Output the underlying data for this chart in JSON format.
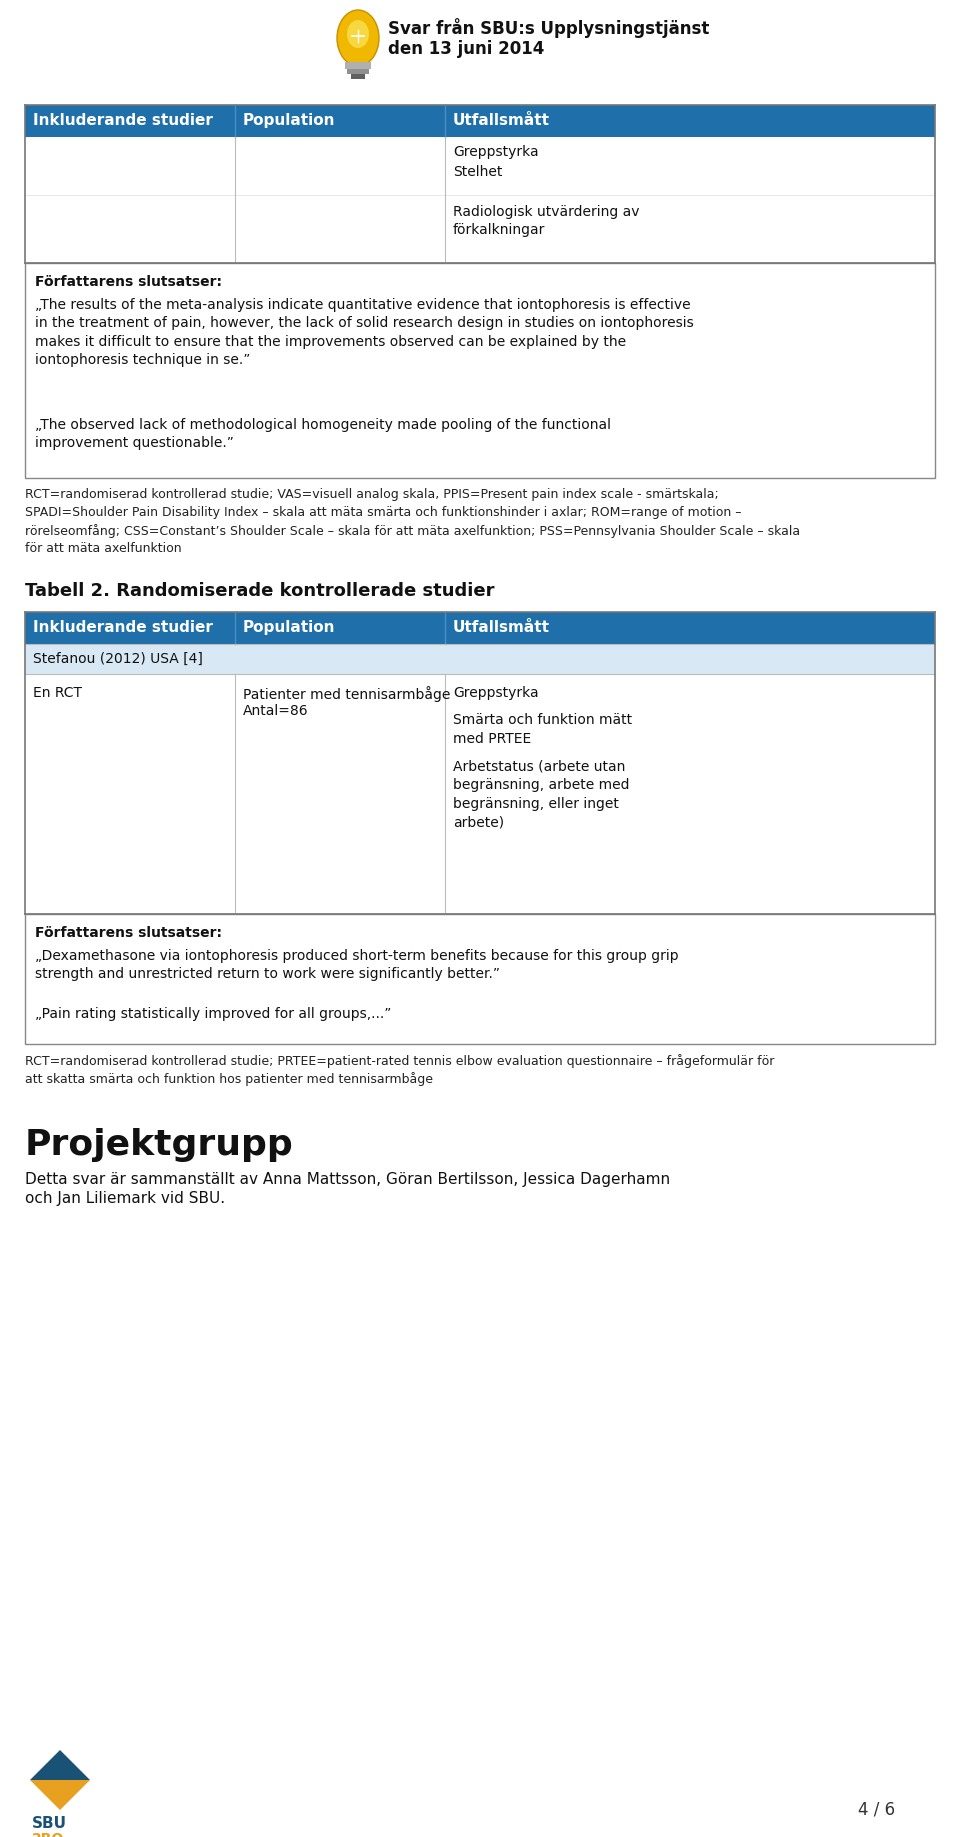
{
  "page_bg": "#ffffff",
  "header_logo_text1": "Svar från SBU:s Upplysningstjänst",
  "header_logo_text2": "den 13 juni 2014",
  "col_headers": [
    "Inkluderande studier",
    "Population",
    "Utfallsmått"
  ],
  "table2_title": "Tabell 2. Randomiserade kontrollerade studier",
  "author_conclusion_label1": "Författarens slutsatser:",
  "author_quote1a": "„The results of the meta-analysis indicate quantitative evidence that iontophoresis is effective\nin the treatment of pain, however, the lack of solid research design in studies on iontophoresis\nmakes it difficult to ensure that the improvements observed can be explained by the\niontophoresis technique in se.”",
  "author_quote1b": "„The observed lack of methodological homogeneity made pooling of the functional\nimprovement questionable.”",
  "footnote1_line1": "RCT=randomiserad kontrollerad studie; VAS=visuell analog skala, PPIS=Present pain index scale - smärtskala;",
  "footnote1_line2": "SPADI=Shoulder Pain Disability Index – skala att mäta smärta och funktionshinder i axlar; ROM=range of motion –",
  "footnote1_line3": "rörelseomfång; CSS=Constant’s Shoulder Scale – skala för att mäta axelfunktion; PSS=Pennsylvania Shoulder Scale – skala",
  "footnote1_line4": "för att mäta axelfunktion",
  "table2_span_row": "Stefanou (2012) USA [4]",
  "table2_col1": "En RCT",
  "table2_col2_l1": "Patienter med tennisarmbåge",
  "table2_col2_l2": "Antal=86",
  "table2_col3_items": [
    "Greppstyrka",
    "Smärta och funktion mätt\nmed PRTEE",
    "Arbetstatus (arbete utan\nbegränsning, arbete med\nbegränsning, eller inget\narbete)"
  ],
  "author_conclusion_label2": "Författarens slutsatser:",
  "author_quote2a": "„Dexamethasone via iontophoresis produced short-term benefits because for this group grip\nstrength and unrestricted return to work were significantly better.”",
  "author_quote2b": "„Pain rating statistically improved for all groups,...”",
  "footnote2_line1": "RCT=randomiserad kontrollerad studie; PRTEE=patient-rated tennis elbow evaluation questionnaire – frågeformulär för",
  "footnote2_line2": "att skatta smärta och funktion hos patienter med tennisarmbåge",
  "projektgrupp_title": "Projektgrupp",
  "projektgrupp_line1": "Detta svar är sammanställt av Anna Mattsson, Göran Bertilsson, Jessica Dagerhamn",
  "projektgrupp_line2": "och Jan Liliemark vid SBU.",
  "page_number": "4 / 6",
  "blue_header": "#1f6faa",
  "light_blue_row": "#d9e8f5",
  "border_color": "#aaaaaa",
  "text_dark": "#111111",
  "footnote_color": "#222222"
}
